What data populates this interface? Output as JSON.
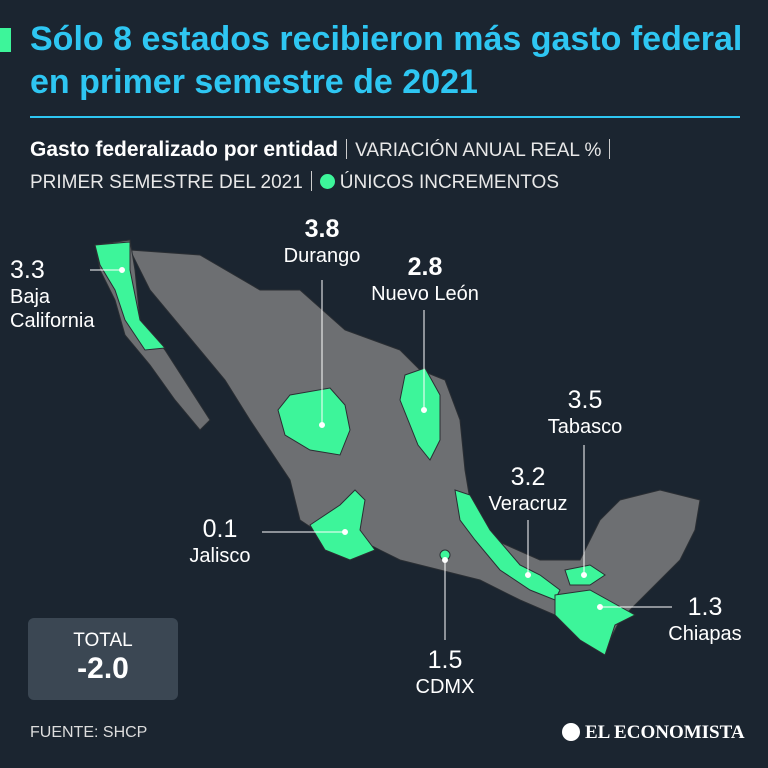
{
  "title": "Sólo 8 estados recibieron más gasto federal en primer semestre de 2021",
  "subtitle": {
    "label": "Gasto federalizado por entidad",
    "measure": "VARIACIÓN ANUAL REAL %",
    "period": "PRIMER SEMESTRE DEL 2021",
    "legend": "ÚNICOS INCREMENTOS",
    "highlight_color": "#3df59a"
  },
  "states": [
    {
      "name": "Baja California",
      "value": "3.3",
      "emphasis": false
    },
    {
      "name": "Durango",
      "value": "3.8",
      "emphasis": true
    },
    {
      "name": "Nuevo León",
      "value": "2.8",
      "emphasis": true
    },
    {
      "name": "Tabasco",
      "value": "3.5",
      "emphasis": false
    },
    {
      "name": "Veracruz",
      "value": "3.2",
      "emphasis": false
    },
    {
      "name": "Jalisco",
      "value": "0.1",
      "emphasis": false
    },
    {
      "name": "Chiapas",
      "value": "1.3",
      "emphasis": false
    },
    {
      "name": "CDMX",
      "value": "1.5",
      "emphasis": false
    }
  ],
  "total": {
    "label": "TOTAL",
    "value": "-2.0"
  },
  "source": "FUENTE: SHCP",
  "brand": "EL ECONOMISTA"
}
